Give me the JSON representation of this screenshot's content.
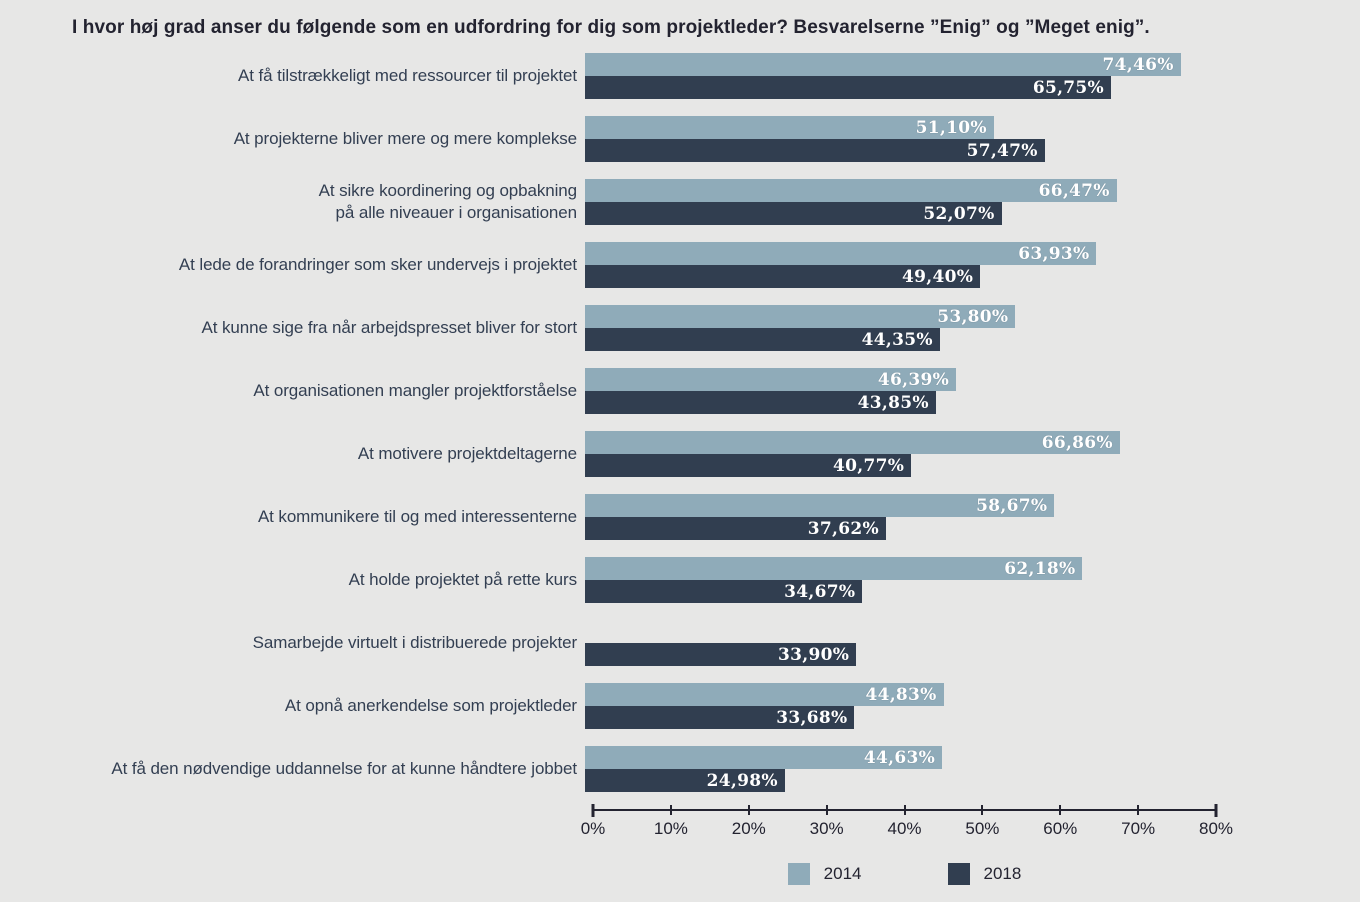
{
  "title": "I hvor høj grad anser du følgende som en udfordring for dig som projektleder? Besvarelserne ”Enig” og ”Meget enig”.",
  "legend": {
    "items": [
      {
        "label": "2014",
        "color": "#8fabb9"
      },
      {
        "label": "2018",
        "color": "#313e50"
      }
    ]
  },
  "axis": {
    "max": 80,
    "tick_labels": [
      "0%",
      "10%",
      "20%",
      "30%",
      "40%",
      "50%",
      "60%",
      "70%",
      "80%"
    ],
    "tick_values": [
      0,
      10,
      20,
      30,
      40,
      50,
      60,
      70,
      80
    ]
  },
  "chart_data": {
    "type": "bar",
    "orientation": "horizontal",
    "title": "I hvor høj grad anser du følgende som en udfordring for dig som projektleder? Besvarelserne ”Enig” og ”Meget enig”.",
    "xlim": [
      0,
      80
    ],
    "grid": false,
    "legend_position": "bottom",
    "categories": [
      "At få tilstrækkeligt med ressourcer til projektet",
      "At projekterne bliver mere og mere komplekse",
      "At sikre koordinering og opbakning\npå alle niveauer i organisationen",
      "At lede de forandringer som sker undervejs i projektet",
      "At kunne sige fra når arbejdspresset bliver for stort",
      "At organisationen mangler projektforståelse",
      "At motivere projektdeltagerne",
      "At kommunikere til og med interessenterne",
      "At holde projektet på rette kurs",
      "Samarbejde virtuelt i distribuerede projekter",
      "At opnå anerkendelse som projektleder",
      "At få den nødvendige uddannelse for at kunne håndtere jobbet"
    ],
    "series": [
      {
        "name": "2014",
        "color": "#8fabb9",
        "values": [
          74.46,
          51.1,
          66.47,
          63.93,
          53.8,
          46.39,
          66.86,
          58.67,
          62.18,
          null,
          44.83,
          44.63
        ],
        "value_labels": [
          "74,46%",
          "51,10%",
          "66,47%",
          "63,93%",
          "53,80%",
          "46,39%",
          "66,86%",
          "58,67%",
          "62,18%",
          null,
          "44,83%",
          "44,63%"
        ]
      },
      {
        "name": "2018",
        "color": "#313e50",
        "values": [
          65.75,
          57.47,
          52.07,
          49.4,
          44.35,
          43.85,
          40.77,
          37.62,
          34.67,
          33.9,
          33.68,
          24.98
        ],
        "value_labels": [
          "65,75%",
          "57,47%",
          "52,07%",
          "49,40%",
          "44,35%",
          "43,85%",
          "40,77%",
          "37,62%",
          "34,67%",
          "33,90%",
          "33,68%",
          "24,98%"
        ]
      }
    ]
  }
}
